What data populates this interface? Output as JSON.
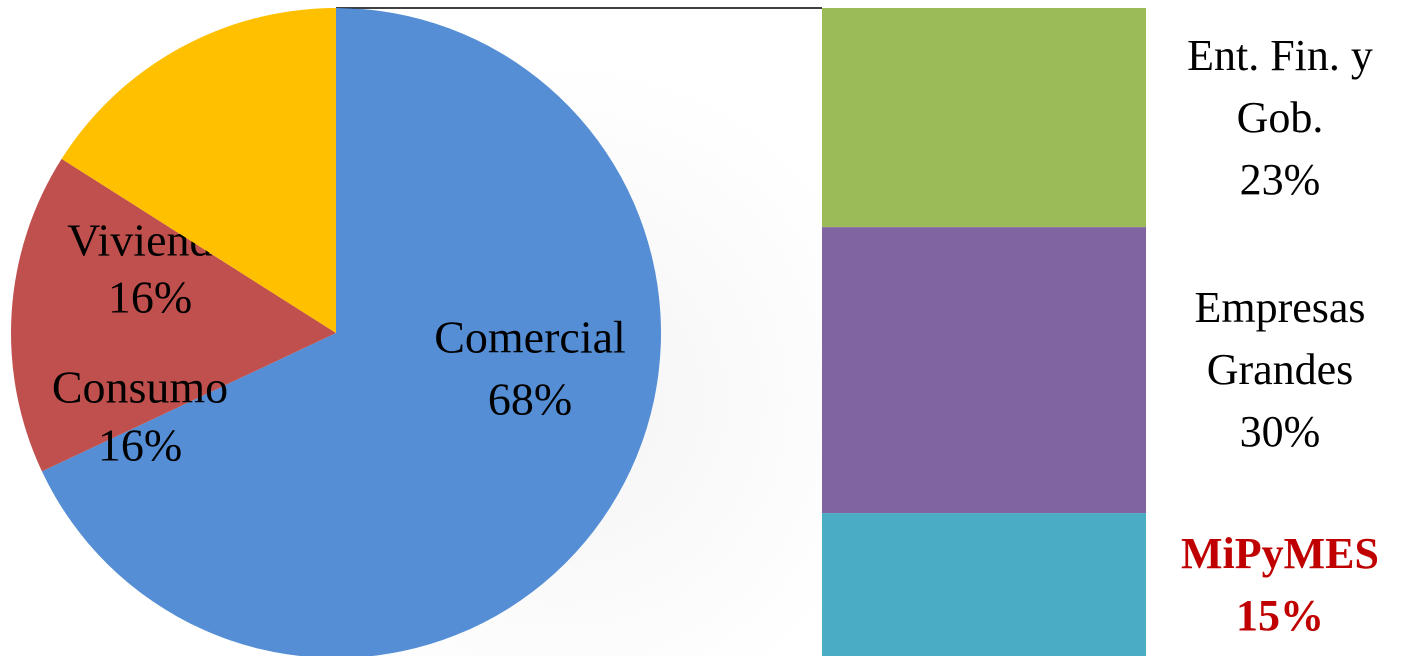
{
  "chart_data": [
    {
      "type": "pie",
      "categories": [
        "Comercial",
        "Vivienda",
        "Consumo"
      ],
      "values": [
        68,
        16,
        16
      ],
      "value_labels": [
        "68%",
        "16%",
        "16%"
      ],
      "colors": [
        "#558ed5",
        "#c0504d",
        "#ffc000"
      ]
    },
    {
      "type": "bar",
      "stacked": true,
      "categories": [
        "Ent. Fin. y Gob.",
        "Empresas Grandes",
        "MiPyMES"
      ],
      "values": [
        23,
        30,
        15
      ],
      "value_labels": [
        "23%",
        "30%",
        "15%"
      ],
      "colors": [
        "#9bbb59",
        "#8064a2",
        "#4bacc6"
      ],
      "label_colors": [
        "#000000",
        "#000000",
        "#c00000"
      ]
    }
  ]
}
